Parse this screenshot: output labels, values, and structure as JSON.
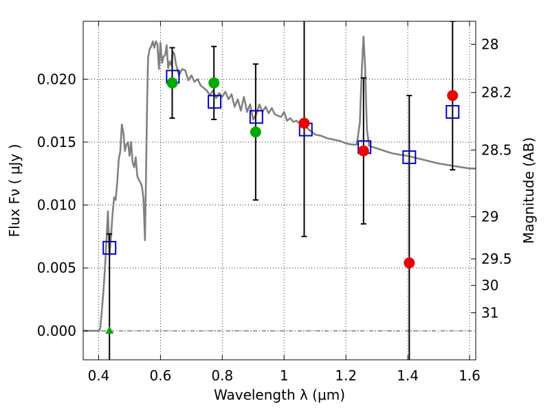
{
  "chart_data": {
    "type": "scatter",
    "xlabel": "Wavelength  λ (μm)",
    "ylabel": "Flux  Fν  ( μJy )",
    "ylabel_right": "Magnitude (AB)",
    "xlim": [
      0.35,
      1.62
    ],
    "ylim": [
      -0.0023,
      0.0246
    ],
    "x_ticks": [
      0.4,
      0.6,
      0.8,
      1.0,
      1.2,
      1.4,
      1.6
    ],
    "x_tick_labels": [
      "0.4",
      "0.6",
      "0.8",
      "1",
      "1.2",
      "1.4",
      "1.6"
    ],
    "y_ticks": [
      0.0,
      0.005,
      0.01,
      0.015,
      0.02
    ],
    "y_tick_labels": [
      "0.000",
      "0.005",
      "0.010",
      "0.015",
      "0.020"
    ],
    "mag_ticks": [
      28,
      28.2,
      28.5,
      29,
      29.5,
      30,
      31
    ],
    "mag_tick_labels": [
      "28",
      "28.2",
      "28.5",
      "29",
      "29.5",
      "30",
      "31"
    ],
    "mag_tick_flux": [
      0.02277,
      0.01894,
      0.01437,
      0.00907,
      0.00572,
      0.00361,
      0.00144
    ],
    "grid": true,
    "colors": {
      "model": "#808080",
      "model_points": "#0000cc",
      "measured_green": "#00aa00",
      "measured_red": "#ee0000",
      "errorbar": "#000000"
    },
    "series": [
      {
        "kind": "line",
        "points": [
          [
            0.35,
            0.0
          ],
          [
            0.4,
            0.0
          ],
          [
            0.405,
            0.0002
          ],
          [
            0.41,
            0.0015
          ],
          [
            0.415,
            0.003
          ],
          [
            0.42,
            0.0048
          ],
          [
            0.425,
            0.007
          ],
          [
            0.43,
            0.0095
          ],
          [
            0.435,
            0.006
          ],
          [
            0.44,
            0.0075
          ],
          [
            0.445,
            0.0093
          ],
          [
            0.45,
            0.0106
          ],
          [
            0.455,
            0.0104
          ],
          [
            0.46,
            0.0118
          ],
          [
            0.465,
            0.0136
          ],
          [
            0.47,
            0.0143
          ],
          [
            0.475,
            0.0164
          ],
          [
            0.48,
            0.0158
          ],
          [
            0.485,
            0.0143
          ],
          [
            0.49,
            0.0148
          ],
          [
            0.495,
            0.015
          ],
          [
            0.5,
            0.0139
          ],
          [
            0.505,
            0.015
          ],
          [
            0.51,
            0.0134
          ],
          [
            0.515,
            0.013
          ],
          [
            0.52,
            0.0138
          ],
          [
            0.525,
            0.0123
          ],
          [
            0.53,
            0.012
          ],
          [
            0.535,
            0.0118
          ],
          [
            0.54,
            0.0115
          ],
          [
            0.545,
            0.0105
          ],
          [
            0.55,
            0.0072
          ],
          [
            0.553,
            0.012
          ],
          [
            0.557,
            0.0185
          ],
          [
            0.56,
            0.0217
          ],
          [
            0.565,
            0.0224
          ],
          [
            0.57,
            0.0226
          ],
          [
            0.575,
            0.023
          ],
          [
            0.58,
            0.0225
          ],
          [
            0.585,
            0.023
          ],
          [
            0.59,
            0.0228
          ],
          [
            0.595,
            0.0208
          ],
          [
            0.6,
            0.0229
          ],
          [
            0.605,
            0.0213
          ],
          [
            0.61,
            0.0218
          ],
          [
            0.615,
            0.0219
          ],
          [
            0.62,
            0.0227
          ],
          [
            0.625,
            0.0209
          ],
          [
            0.63,
            0.0214
          ],
          [
            0.635,
            0.0211
          ],
          [
            0.64,
            0.0222
          ],
          [
            0.645,
            0.022
          ],
          [
            0.65,
            0.0212
          ],
          [
            0.66,
            0.0203
          ],
          [
            0.67,
            0.0208
          ],
          [
            0.68,
            0.0207
          ],
          [
            0.69,
            0.0199
          ],
          [
            0.7,
            0.0203
          ],
          [
            0.71,
            0.0198
          ],
          [
            0.72,
            0.02
          ],
          [
            0.73,
            0.0195
          ],
          [
            0.74,
            0.0193
          ],
          [
            0.75,
            0.0191
          ],
          [
            0.76,
            0.0187
          ],
          [
            0.77,
            0.0191
          ],
          [
            0.78,
            0.0185
          ],
          [
            0.79,
            0.0189
          ],
          [
            0.8,
            0.0186
          ],
          [
            0.81,
            0.019
          ],
          [
            0.82,
            0.0184
          ],
          [
            0.83,
            0.0188
          ],
          [
            0.84,
            0.0178
          ],
          [
            0.85,
            0.0184
          ],
          [
            0.86,
            0.0175
          ],
          [
            0.87,
            0.0186
          ],
          [
            0.88,
            0.0174
          ],
          [
            0.89,
            0.018
          ],
          [
            0.9,
            0.0168
          ],
          [
            0.91,
            0.0172
          ],
          [
            0.92,
            0.018
          ],
          [
            0.93,
            0.0174
          ],
          [
            0.94,
            0.0178
          ],
          [
            0.95,
            0.0173
          ],
          [
            0.96,
            0.0177
          ],
          [
            0.97,
            0.0172
          ],
          [
            0.98,
            0.0171
          ],
          [
            0.99,
            0.017
          ],
          [
            1.0,
            0.0174
          ],
          [
            1.01,
            0.0167
          ],
          [
            1.02,
            0.0169
          ],
          [
            1.03,
            0.0166
          ],
          [
            1.04,
            0.0167
          ],
          [
            1.05,
            0.0165
          ],
          [
            1.06,
            0.0164
          ],
          [
            1.08,
            0.016
          ],
          [
            1.1,
            0.0156
          ],
          [
            1.12,
            0.0155
          ],
          [
            1.14,
            0.0153
          ],
          [
            1.16,
            0.0152
          ],
          [
            1.18,
            0.0151
          ],
          [
            1.2,
            0.0149
          ],
          [
            1.22,
            0.0148
          ],
          [
            1.235,
            0.0148
          ],
          [
            1.245,
            0.0165
          ],
          [
            1.252,
            0.021
          ],
          [
            1.257,
            0.0234
          ],
          [
            1.262,
            0.021
          ],
          [
            1.268,
            0.016
          ],
          [
            1.275,
            0.0147
          ],
          [
            1.3,
            0.0145
          ],
          [
            1.35,
            0.0141
          ],
          [
            1.4,
            0.0139
          ],
          [
            1.45,
            0.0136
          ],
          [
            1.5,
            0.0133
          ],
          [
            1.55,
            0.0131
          ],
          [
            1.6,
            0.0129
          ],
          [
            1.62,
            0.0129
          ]
        ]
      },
      {
        "kind": "model-squares",
        "x": [
          0.435,
          0.64,
          0.775,
          0.91,
          1.07,
          1.26,
          1.405,
          1.545
        ],
        "y": [
          0.0066,
          0.0202,
          0.0182,
          0.017,
          0.016,
          0.0146,
          0.0138,
          0.0174
        ]
      },
      {
        "kind": "measured",
        "points": [
          {
            "x": 0.435,
            "y": 0.0,
            "err": 0.0077,
            "color": "green",
            "marker": "triangle"
          },
          {
            "x": 0.638,
            "y": 0.0197,
            "err": 0.0028,
            "color": "green",
            "marker": "circle"
          },
          {
            "x": 0.773,
            "y": 0.0197,
            "err": 0.0029,
            "color": "green",
            "marker": "circle"
          },
          {
            "x": 0.908,
            "y": 0.0158,
            "err": 0.0054,
            "color": "green",
            "marker": "circle"
          },
          {
            "x": 1.065,
            "y": 0.0165,
            "err": 0.009,
            "color": "red",
            "marker": "circle"
          },
          {
            "x": 1.257,
            "y": 0.0143,
            "err": 0.0058,
            "color": "red",
            "marker": "circle"
          },
          {
            "x": 1.405,
            "y": 0.0054,
            "err": 0.0133,
            "color": "red",
            "marker": "circle"
          },
          {
            "x": 1.545,
            "y": 0.0187,
            "err": 0.0059,
            "color": "red",
            "marker": "circle"
          }
        ]
      }
    ]
  }
}
